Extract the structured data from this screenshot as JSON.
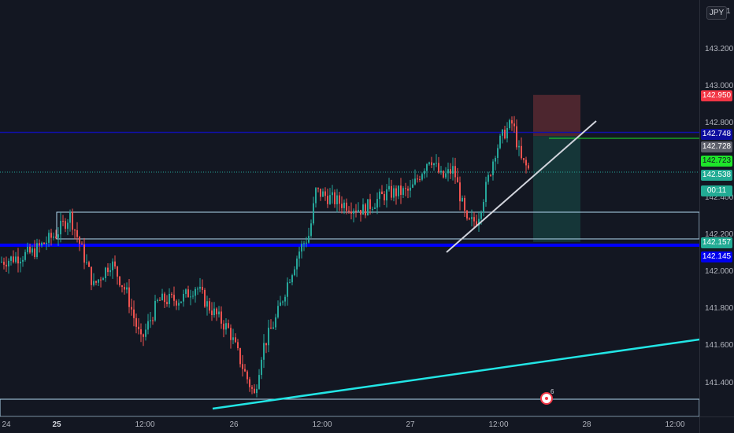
{
  "currency": "JPY",
  "axis_top_digit": "1",
  "price_ticks": [
    "143.200",
    "143.000",
    "142.800",
    "142.400",
    "142.200",
    "142.000",
    "141.800",
    "141.600",
    "141.400"
  ],
  "time_ticks": [
    "24",
    "25",
    "12:00",
    "26",
    "12:00",
    "27",
    "12:00",
    "28",
    "12:00"
  ],
  "price_labels": [
    {
      "text": "142.950",
      "bg": "#f23645",
      "fg": "#ffffff",
      "name": "stop-loss-price-label"
    },
    {
      "text": "142.748",
      "bg": "#0c0c9e",
      "fg": "#ffffff",
      "name": "upper-line-price-label"
    },
    {
      "text": "142.728",
      "bg": "#5d606b",
      "fg": "#ffffff",
      "name": "entry-price-label"
    },
    {
      "text": "142.723",
      "bg": "#1ee52a",
      "fg": "#131722",
      "name": "green-line-price-label"
    },
    {
      "text": "142.538",
      "bg": "#22ab94",
      "fg": "#ffffff",
      "name": "last-price-label"
    },
    {
      "text": "00:11",
      "bg": "#22ab94",
      "fg": "#ffffff",
      "name": "countdown-label"
    },
    {
      "text": "142.157",
      "bg": "#22ab94",
      "fg": "#ffffff",
      "name": "take-profit-price-label"
    },
    {
      "text": "142.145",
      "bg": "#0000ee",
      "fg": "#ffffff",
      "name": "support-line-price-label"
    }
  ],
  "event_count": "6",
  "colors": {
    "background": "#131722",
    "up_candle": "#26a69a",
    "down_candle": "#ef5350",
    "rect_outline": "#b2d8f0",
    "support_line": "#0000ff",
    "upper_line": "#1010a8",
    "green_line": "#1ee52a",
    "trend_line": "#d1d4dc",
    "cyan_line": "#22e5e5",
    "stop_zone": "#5c2a33",
    "target_zone": "#163c3c"
  },
  "chart_data": {
    "type": "candlestick",
    "title": "",
    "ylim": [
      141.3,
      143.2
    ],
    "x_ticks": [
      "24",
      "25",
      "12:00",
      "26",
      "12:00",
      "27",
      "12:00",
      "28",
      "12:00"
    ],
    "y_ticks": [
      143.2,
      143.0,
      142.8,
      142.4,
      142.2,
      142.0,
      141.8,
      141.6,
      141.4
    ],
    "last_price": 142.538,
    "horizontal_levels": [
      142.748,
      142.723,
      142.157,
      142.145
    ],
    "short_position": {
      "stop": 142.95,
      "entry": 142.728,
      "target": 142.157
    }
  }
}
